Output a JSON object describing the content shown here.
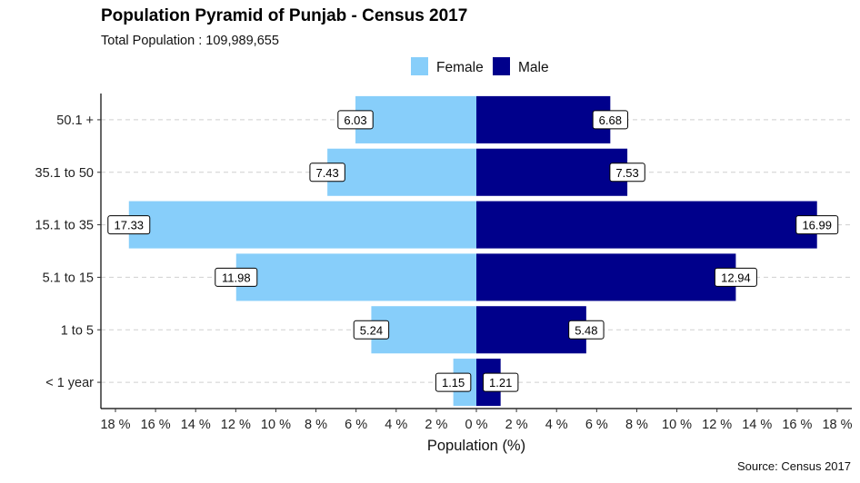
{
  "chart_data": {
    "type": "bar",
    "orientation": "horizontal-pyramid",
    "title": "Population Pyramid of Punjab - Census 2017",
    "subtitle": "Total Population : 109,989,655",
    "caption": "Source: Census 2017",
    "xlabel": "Population (%)",
    "ylabel": "",
    "categories": [
      "< 1 year",
      "1 to 5",
      "5.1 to 15",
      "15.1 to 35",
      "35.1 to 50",
      "50.1 +"
    ],
    "series": [
      {
        "name": "Female",
        "color": "#87CEFA",
        "side": "left",
        "values": [
          1.15,
          5.24,
          11.98,
          17.33,
          7.43,
          6.03
        ]
      },
      {
        "name": "Male",
        "color": "#00008B",
        "side": "right",
        "values": [
          1.21,
          5.48,
          12.94,
          16.99,
          7.53,
          6.68
        ]
      }
    ],
    "xlim": [
      -18,
      18
    ],
    "x_ticks": [
      -18,
      -16,
      -14,
      -12,
      -10,
      -8,
      -6,
      -4,
      -2,
      0,
      2,
      4,
      6,
      8,
      10,
      12,
      14,
      16,
      18
    ],
    "x_tick_labels": [
      "18 %",
      "16 %",
      "14 %",
      "12 %",
      "10 %",
      "8 %",
      "6 %",
      "4 %",
      "2 %",
      "0 %",
      "2 %",
      "4 %",
      "6 %",
      "8 %",
      "10 %",
      "12 %",
      "14 %",
      "16 %",
      "18 %"
    ],
    "legend_position": "top",
    "grid": "horizontal-dashed"
  }
}
